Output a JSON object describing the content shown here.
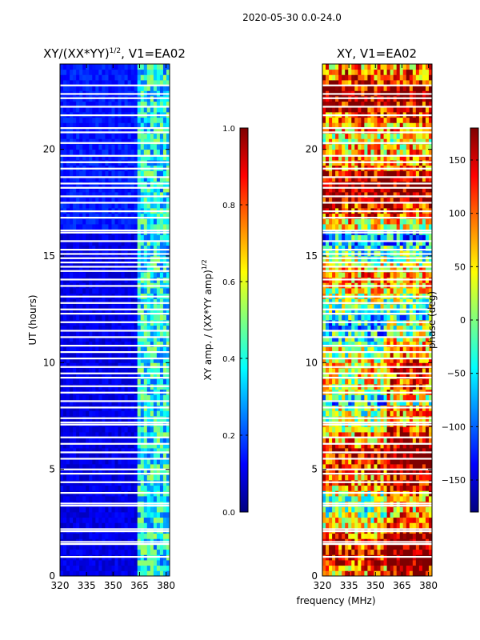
{
  "suptitle": "2020-05-30 0.0-24.0",
  "shared_xlabel": "frequency (MHz)",
  "colors": {
    "jet": [
      "#00007f",
      "#0000ff",
      "#007fff",
      "#00ffff",
      "#7fff7f",
      "#ffff00",
      "#ff7f00",
      "#ff0000",
      "#7f0000"
    ],
    "blank": "#ffffff"
  },
  "chart_data": [
    {
      "type": "heatmap",
      "title": "XY/(XX*YY)",
      "title_superscript": "1/2",
      "title_suffix": ", V1=EA02",
      "xlabel": "",
      "ylabel": "UT (hours)",
      "xlim": [
        320,
        382
      ],
      "ylim": [
        0,
        24
      ],
      "xticks": [
        320,
        335,
        350,
        365,
        380
      ],
      "yticks": [
        0,
        5,
        10,
        15,
        20
      ],
      "colorbar": {
        "label": "XY amp. / (XX*YY amp)",
        "label_superscript": "1/2",
        "range": [
          0.0,
          1.0
        ],
        "ticks": [
          "0.0",
          "0.2",
          "0.4",
          "0.6",
          "0.8",
          "1.0"
        ],
        "tick_values": [
          0.0,
          0.2,
          0.4,
          0.6,
          0.8,
          1.0
        ]
      },
      "description": "low normalized amplitude below ~363 MHz, higher amplitude (0.2-0.5) in 363-382 MHz band"
    },
    {
      "type": "heatmap",
      "title": "XY, V1=EA02",
      "xlabel": "",
      "ylabel": "",
      "xlim": [
        320,
        382
      ],
      "ylim": [
        0,
        24
      ],
      "xticks": [
        320,
        335,
        350,
        365,
        380
      ],
      "yticks": [
        0,
        5,
        10,
        15,
        20
      ],
      "colorbar": {
        "label": "phase (deg)",
        "range": [
          -180,
          180
        ],
        "ticks": [
          "−150",
          "−100",
          "−50",
          "0",
          "50",
          "100",
          "150"
        ],
        "tick_values": [
          -150,
          -100,
          -50,
          0,
          50,
          100,
          150
        ]
      },
      "description": "XY phase in degrees, varies across time and frequency"
    }
  ],
  "blank_rows_hours": [
    0.9,
    1.5,
    1.6,
    2.1,
    2.2,
    3.3,
    3.4,
    3.9,
    4.4,
    4.8,
    5.0,
    5.5,
    5.8,
    6.2,
    6.5,
    7.1,
    7.2,
    7.4,
    7.9,
    8.2,
    8.6,
    8.9,
    9.3,
    9.5,
    9.8,
    10.2,
    10.5,
    10.8,
    11.2,
    11.5,
    11.9,
    12.3,
    12.5,
    12.8,
    13.1,
    13.6,
    13.9,
    14.3,
    14.5,
    14.7,
    14.9,
    15.1,
    15.3,
    15.7,
    16.1,
    16.2,
    16.8,
    17.1,
    17.5,
    17.8,
    18.2,
    18.4,
    18.7,
    19.1,
    19.4,
    19.7,
    20.3,
    20.8,
    21.0,
    21.6,
    22.0,
    22.4,
    22.6,
    23.0
  ]
}
